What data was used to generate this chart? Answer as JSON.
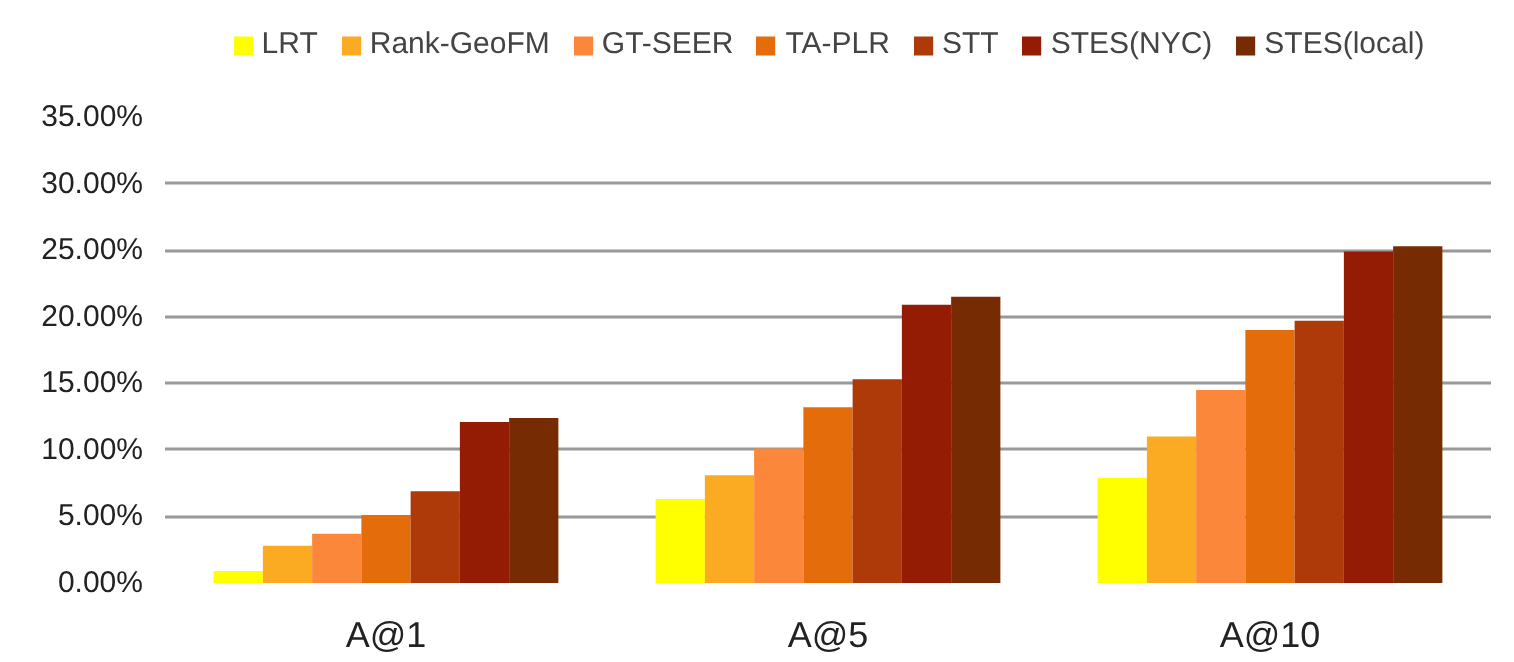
{
  "chart_data": {
    "type": "bar",
    "categories": [
      "A@1",
      "A@5",
      "A@10"
    ],
    "series": [
      {
        "name": "LRT",
        "color": "#ffff00",
        "values": [
          0.9,
          6.3,
          7.9
        ]
      },
      {
        "name": "Rank-GeoFM",
        "color": "#fbab22",
        "values": [
          2.8,
          8.1,
          11.0
        ]
      },
      {
        "name": "GT-SEER",
        "color": "#fb873b",
        "values": [
          3.7,
          10.1,
          14.5
        ]
      },
      {
        "name": "TA-PLR",
        "color": "#e46c0a",
        "values": [
          5.1,
          13.2,
          19.0
        ]
      },
      {
        "name": "STT",
        "color": "#ad3a08",
        "values": [
          6.9,
          15.3,
          19.7
        ]
      },
      {
        "name": "STES(NYC)",
        "color": "#951c04",
        "values": [
          12.1,
          20.9,
          24.9
        ]
      },
      {
        "name": "STES(local)",
        "color": "#772b02",
        "values": [
          12.4,
          21.5,
          25.3
        ]
      }
    ],
    "ylim": [
      0,
      35
    ],
    "yticks": [
      {
        "value": 0,
        "label": "0.00%"
      },
      {
        "value": 5,
        "label": "5.00%"
      },
      {
        "value": 10,
        "label": "10.00%"
      },
      {
        "value": 15,
        "label": "15.00%"
      },
      {
        "value": 20,
        "label": "20.00%"
      },
      {
        "value": 25,
        "label": "25.00%"
      },
      {
        "value": 30,
        "label": "30.00%"
      },
      {
        "value": 35,
        "label": "35.00%"
      }
    ],
    "grid": "y",
    "legend": "top"
  }
}
